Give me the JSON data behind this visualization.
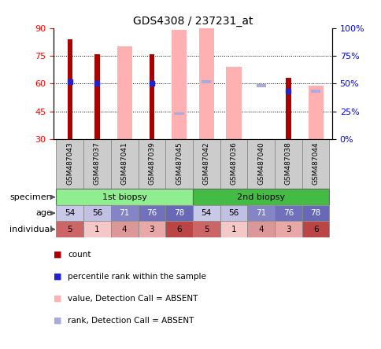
{
  "title": "GDS4308 / 237231_at",
  "samples": [
    "GSM487043",
    "GSM487037",
    "GSM487041",
    "GSM487039",
    "GSM487045",
    "GSM487042",
    "GSM487036",
    "GSM487040",
    "GSM487038",
    "GSM487044"
  ],
  "ylim": [
    30,
    90
  ],
  "yticks": [
    30,
    45,
    60,
    75,
    90
  ],
  "y2ticks": [
    0,
    25,
    50,
    75,
    100
  ],
  "y2labels": [
    "0%",
    "25%",
    "50%",
    "75%",
    "100%"
  ],
  "red_bars": [
    84,
    76,
    null,
    76,
    null,
    null,
    null,
    null,
    63,
    null
  ],
  "blue_dots_y": [
    61,
    60,
    null,
    60,
    null,
    null,
    null,
    null,
    56,
    null
  ],
  "pink_bars": [
    null,
    null,
    80,
    null,
    89,
    90,
    69,
    null,
    null,
    59
  ],
  "lavender_bars_y": [
    null,
    null,
    null,
    null,
    44,
    61,
    null,
    59,
    null,
    56
  ],
  "age_values": [
    54,
    56,
    71,
    76,
    78,
    54,
    56,
    71,
    76,
    78
  ],
  "individual_values": [
    5,
    1,
    4,
    3,
    6,
    5,
    1,
    4,
    3,
    6
  ],
  "biopsy_1_count": 5,
  "biopsy_2_count": 5,
  "green_light": "#90ee90",
  "green_dark": "#44bb44",
  "red_color": "#aa0000",
  "pink_color": "#ffb0b0",
  "blue_color": "#2222cc",
  "lavender_color": "#aaaadd",
  "label_bg": "#cccccc",
  "legend_items": [
    [
      "#aa0000",
      "count"
    ],
    [
      "#2222cc",
      "percentile rank within the sample"
    ],
    [
      "#ffb0b0",
      "value, Detection Call = ABSENT"
    ],
    [
      "#aaaadd",
      "rank, Detection Call = ABSENT"
    ]
  ]
}
